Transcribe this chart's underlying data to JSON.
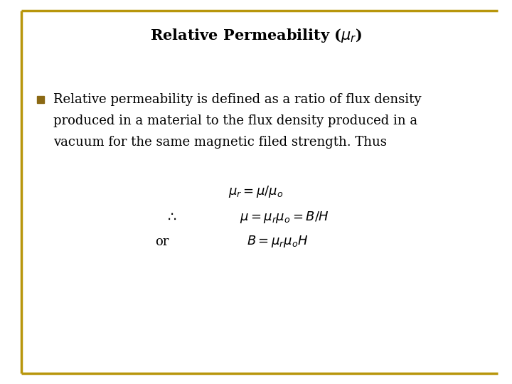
{
  "title": "Relative Permeability ($\\mu_r$)",
  "title_fontsize": 15,
  "title_fontweight": "bold",
  "title_color": "#000000",
  "background_color": "#ffffff",
  "border_color": "#b8960c",
  "border_linewidth": 2.5,
  "bullet_color": "#8B6914",
  "bullet_line1": "Relative permeability is defined as a ratio of flux density",
  "bullet_line2": "produced in a material to the flux density produced in a",
  "bullet_line3": "vacuum for the same magnetic filed strength. Thus",
  "bullet_fontsize": 13,
  "eq1": "$\\mu_r  =  \\mu/\\mu_o$",
  "eq2_left": "$\\therefore$",
  "eq2_right": "$\\mu  =  \\mu_r\\mu_o  =  B/H$",
  "eq3_left": "or",
  "eq3_right": "$B  = \\mu_r\\mu_o H$",
  "eq_fontsize": 13,
  "line_color": "#b8960c",
  "line_linewidth": 2.0,
  "fig_width": 7.2,
  "fig_height": 5.4,
  "dpi": 100
}
